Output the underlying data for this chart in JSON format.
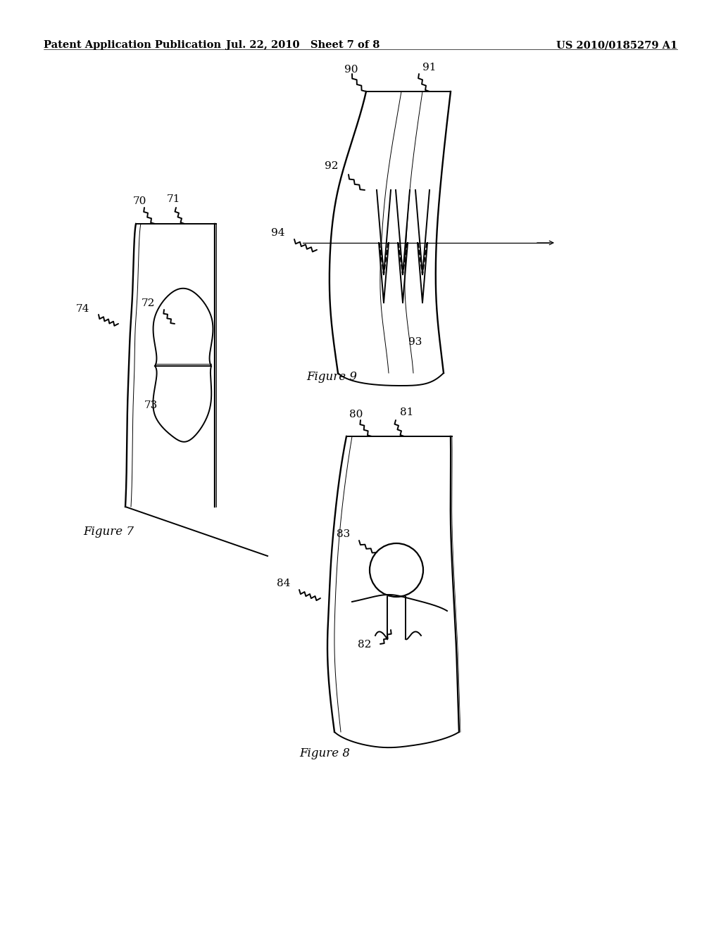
{
  "bg_color": "#ffffff",
  "header_left": "Patent Application Publication",
  "header_center": "Jul. 22, 2010   Sheet 7 of 8",
  "header_right": "US 2010/0185279 A1",
  "header_fontsize": 10.5,
  "figure_label_fontsize": 12,
  "ref_label_fontsize": 11,
  "lw": 1.4
}
